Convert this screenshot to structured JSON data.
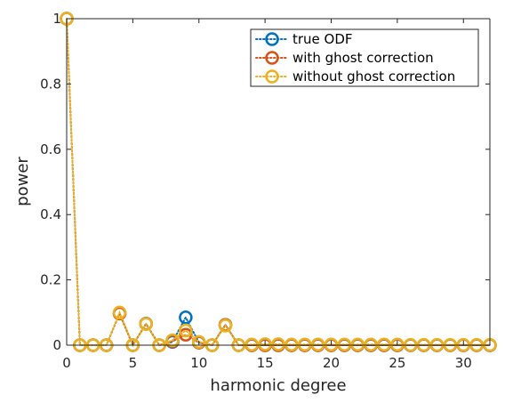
{
  "chart_data": {
    "type": "line",
    "xlabel": "harmonic degree",
    "ylabel": "power",
    "xlim": [
      0,
      32
    ],
    "ylim": [
      0,
      1
    ],
    "xticks": [
      "0",
      "5",
      "10",
      "15",
      "20",
      "25",
      "30"
    ],
    "yticks": [
      "0",
      "0.2",
      "0.4",
      "0.6",
      "0.8",
      "1"
    ],
    "grid": false,
    "legend_position": "top-right",
    "x": [
      0,
      1,
      2,
      3,
      4,
      5,
      6,
      7,
      8,
      9,
      10,
      11,
      12,
      13,
      14,
      15,
      16,
      17,
      18,
      19,
      20,
      21,
      22,
      23,
      24,
      25,
      26,
      27,
      28,
      29,
      30,
      31,
      32
    ],
    "series": [
      {
        "name": "true ODF",
        "color": "#0072BD",
        "values": [
          1.0,
          0,
          0,
          0,
          0.097,
          0,
          0.066,
          0,
          0.01,
          0.085,
          0.008,
          0,
          0.062,
          0,
          0,
          0,
          0,
          0,
          0,
          0,
          0,
          0,
          0,
          0,
          0,
          0,
          0,
          0,
          0,
          0,
          0,
          0,
          0
        ]
      },
      {
        "name": "with ghost correction",
        "color": "#D95319",
        "values": [
          1.0,
          0,
          0,
          0,
          0.097,
          0,
          0.065,
          0,
          0.012,
          0.032,
          0.008,
          0,
          0.062,
          0,
          0,
          0,
          0,
          0,
          0,
          0,
          0,
          0,
          0,
          0,
          0,
          0,
          0,
          0,
          0,
          0,
          0,
          0,
          0
        ]
      },
      {
        "name": "without ghost correction",
        "color": "#EDB120",
        "values": [
          1.0,
          0,
          0,
          0,
          0.1,
          0,
          0.065,
          0,
          0.015,
          0.045,
          0.01,
          0,
          0.06,
          0,
          0.002,
          0.003,
          0.003,
          0.002,
          0.002,
          0.002,
          0.002,
          0.002,
          0.002,
          0.002,
          0.002,
          0.002,
          0.001,
          0.001,
          0.001,
          0.001,
          0.001,
          0.001,
          0.001
        ]
      }
    ]
  }
}
